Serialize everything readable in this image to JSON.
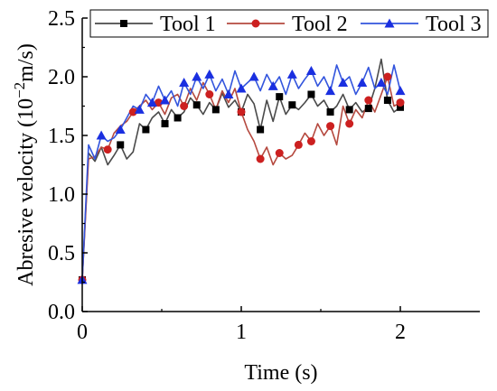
{
  "chart_data": {
    "type": "line",
    "xlabel": "Time (s)",
    "ylabel": "Abresive velocity (10",
    "ylabel_sup": "−2",
    "ylabel_unit": "m/s)",
    "xlim": [
      0,
      2.5
    ],
    "ylim": [
      0,
      2.5
    ],
    "xticks": [
      0,
      1,
      2
    ],
    "xtick_labels": [
      "0",
      "1",
      "2"
    ],
    "yticks": [
      0,
      0.5,
      1.0,
      1.5,
      2.0,
      2.5
    ],
    "ytick_labels": [
      "0.0",
      "0.5",
      "1.0",
      "1.5",
      "2.0",
      "2.5"
    ],
    "grid": false,
    "legend_position": "top",
    "series": [
      {
        "name": "Tool 1",
        "color": "#3a3a3a",
        "line_color": "#4a4a4a",
        "marker": "square",
        "marker_color": "#000000",
        "x": [
          0,
          0.04,
          0.08,
          0.12,
          0.16,
          0.2,
          0.24,
          0.28,
          0.32,
          0.36,
          0.4,
          0.44,
          0.48,
          0.52,
          0.56,
          0.6,
          0.64,
          0.68,
          0.72,
          0.76,
          0.8,
          0.84,
          0.88,
          0.92,
          0.96,
          1.0,
          1.04,
          1.08,
          1.12,
          1.16,
          1.2,
          1.24,
          1.28,
          1.32,
          1.36,
          1.4,
          1.44,
          1.48,
          1.52,
          1.56,
          1.6,
          1.64,
          1.68,
          1.72,
          1.76,
          1.8,
          1.84,
          1.88,
          1.92,
          1.96,
          2.0
        ],
        "y": [
          0.27,
          1.35,
          1.28,
          1.4,
          1.25,
          1.33,
          1.42,
          1.3,
          1.36,
          1.6,
          1.55,
          1.65,
          1.7,
          1.6,
          1.72,
          1.65,
          1.7,
          1.82,
          1.76,
          1.68,
          1.78,
          1.72,
          1.86,
          1.74,
          1.8,
          1.7,
          1.85,
          1.77,
          1.55,
          1.8,
          1.62,
          1.83,
          1.68,
          1.76,
          1.72,
          1.78,
          1.85,
          1.75,
          1.8,
          1.7,
          1.75,
          1.85,
          1.72,
          1.78,
          1.7,
          1.73,
          1.9,
          2.15,
          1.8,
          1.7,
          1.74
        ],
        "marker_indices": [
          0,
          6,
          10,
          13,
          15,
          18,
          21,
          25,
          28,
          31,
          33,
          36,
          39,
          42,
          45,
          48,
          50
        ]
      },
      {
        "name": "Tool 2",
        "color": "#b5493f",
        "line_color": "#b5493f",
        "marker": "circle",
        "marker_color": "#cc2020",
        "x": [
          0,
          0.04,
          0.08,
          0.12,
          0.16,
          0.2,
          0.24,
          0.28,
          0.32,
          0.36,
          0.4,
          0.44,
          0.48,
          0.52,
          0.56,
          0.6,
          0.64,
          0.68,
          0.72,
          0.76,
          0.8,
          0.84,
          0.88,
          0.92,
          0.96,
          1.0,
          1.04,
          1.08,
          1.12,
          1.16,
          1.2,
          1.24,
          1.28,
          1.32,
          1.36,
          1.4,
          1.44,
          1.48,
          1.52,
          1.56,
          1.6,
          1.64,
          1.68,
          1.72,
          1.76,
          1.8,
          1.84,
          1.88,
          1.92,
          1.96,
          2.0
        ],
        "y": [
          0.27,
          1.3,
          1.32,
          1.4,
          1.38,
          1.52,
          1.58,
          1.62,
          1.7,
          1.75,
          1.8,
          1.72,
          1.78,
          1.68,
          1.82,
          1.85,
          1.75,
          1.9,
          1.8,
          1.95,
          1.85,
          1.72,
          1.88,
          1.78,
          1.9,
          1.7,
          1.55,
          1.45,
          1.3,
          1.4,
          1.25,
          1.35,
          1.3,
          1.33,
          1.42,
          1.52,
          1.45,
          1.6,
          1.5,
          1.58,
          1.42,
          1.75,
          1.6,
          1.72,
          1.65,
          1.8,
          1.7,
          1.85,
          2.0,
          1.75,
          1.78
        ],
        "marker_indices": [
          0,
          4,
          8,
          12,
          16,
          20,
          25,
          28,
          31,
          34,
          36,
          39,
          42,
          45,
          48,
          50
        ]
      },
      {
        "name": "Tool 3",
        "color": "#2f4fd8",
        "line_color": "#3355dd",
        "marker": "triangle",
        "marker_color": "#1a2fe0",
        "x": [
          0,
          0.04,
          0.08,
          0.12,
          0.16,
          0.2,
          0.24,
          0.28,
          0.32,
          0.36,
          0.4,
          0.44,
          0.48,
          0.52,
          0.56,
          0.6,
          0.64,
          0.68,
          0.72,
          0.76,
          0.8,
          0.84,
          0.88,
          0.92,
          0.96,
          1.0,
          1.04,
          1.08,
          1.12,
          1.16,
          1.2,
          1.24,
          1.28,
          1.32,
          1.36,
          1.4,
          1.44,
          1.48,
          1.52,
          1.56,
          1.6,
          1.64,
          1.68,
          1.72,
          1.76,
          1.8,
          1.84,
          1.88,
          1.92,
          1.96,
          2.0
        ],
        "y": [
          0.27,
          1.42,
          1.3,
          1.5,
          1.45,
          1.48,
          1.55,
          1.65,
          1.75,
          1.72,
          1.85,
          1.78,
          1.92,
          1.8,
          1.88,
          1.75,
          1.95,
          1.85,
          2.0,
          1.9,
          2.02,
          1.88,
          1.98,
          1.85,
          2.05,
          1.9,
          1.95,
          2.0,
          1.88,
          2.02,
          1.92,
          2.0,
          1.85,
          2.02,
          1.9,
          1.98,
          2.05,
          1.92,
          2.0,
          1.88,
          2.1,
          1.95,
          2.0,
          1.85,
          1.95,
          2.08,
          1.9,
          1.95,
          1.85,
          2.1,
          1.88
        ],
        "marker_indices": [
          0,
          3,
          6,
          9,
          11,
          13,
          16,
          18,
          20,
          23,
          25,
          27,
          30,
          33,
          36,
          39,
          41,
          44,
          47,
          50
        ]
      }
    ]
  }
}
